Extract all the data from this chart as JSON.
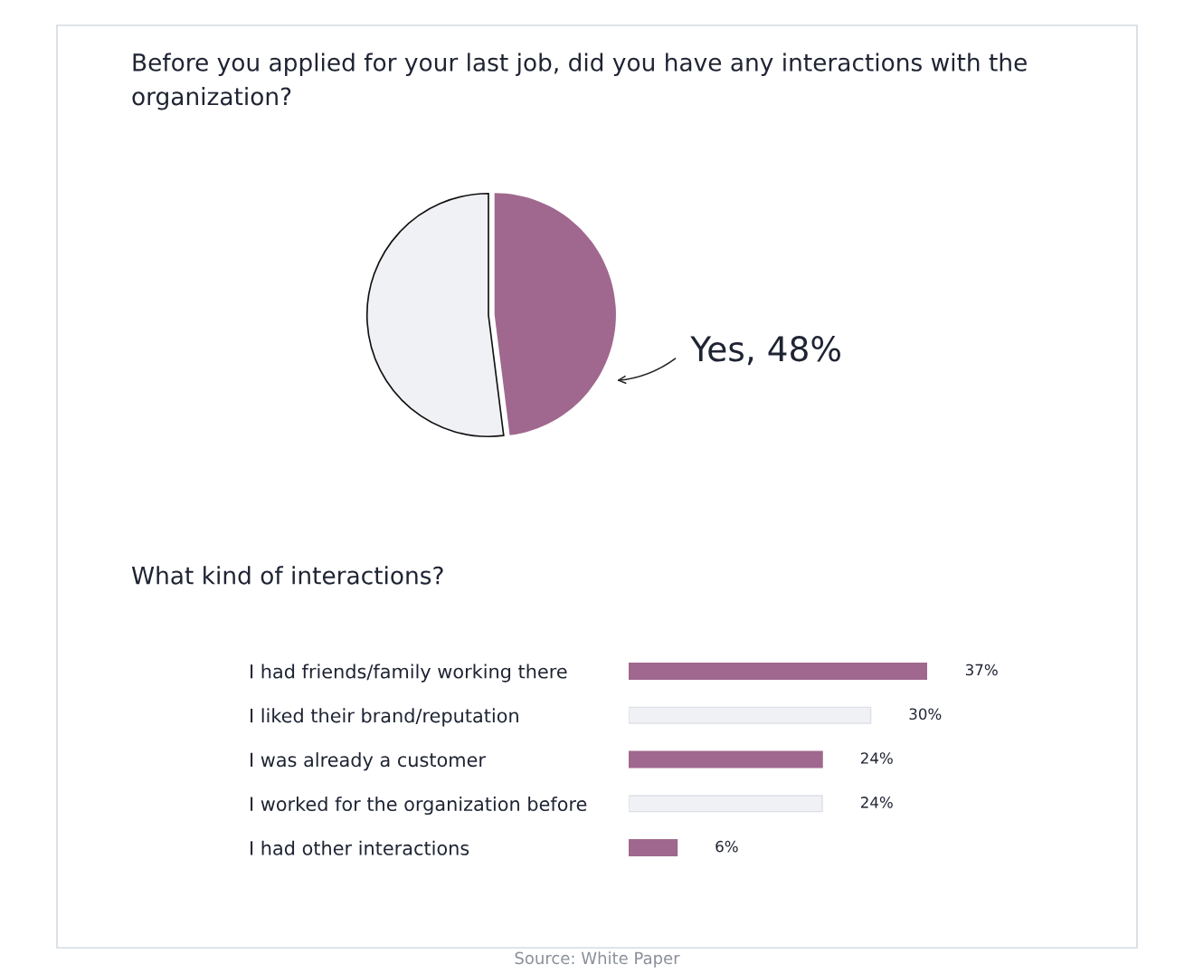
{
  "chart_data": [
    {
      "type": "pie",
      "title": "Before you applied for your last job, did you have any interactions with the organization?",
      "categories": [
        null,
        null
      ],
      "values": [
        48,
        52
      ],
      "colors": [
        "#a0688e",
        "#f0f1f5"
      ],
      "value_labels": [
        "Yes, 48%",
        null
      ]
    },
    {
      "type": "bar",
      "orientation": "horizontal",
      "title": "What kind of interactions?",
      "categories": [
        "I had friends/family working there",
        "I liked their brand/reputation",
        "I was already a customer",
        "I worked for the organization before",
        "I had other interactions"
      ],
      "values": [
        37,
        30,
        24,
        24,
        6
      ],
      "colors": [
        "#a0688e",
        "#f0f1f5",
        "#a0688e",
        "#f0f1f5",
        "#a0688e"
      ],
      "value_labels": [
        "37%",
        "30%",
        "24%",
        "24%",
        "6%"
      ],
      "grid": false,
      "annotations": [
        "Source: White Paper"
      ]
    }
  ]
}
